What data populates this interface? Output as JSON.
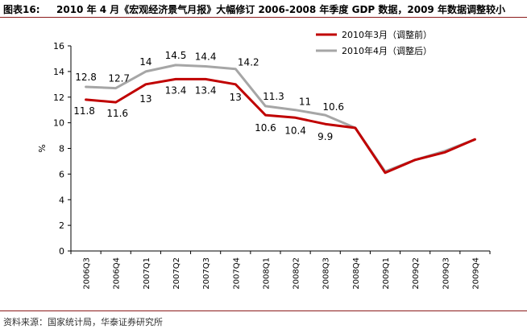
{
  "header": {
    "label": "图表16:",
    "title": "2010 年 4 月《宏观经济景气月报》大幅修订 2006-2008 年季度 GDP 数据，2009 年数据调整较小"
  },
  "footer": {
    "source": "资料来源：国家统计局，华泰证券研究所"
  },
  "chart_data": {
    "type": "line",
    "title": "",
    "xlabel": "",
    "ylabel": "%",
    "ylim": [
      0,
      16
    ],
    "yticks": [
      0,
      2,
      4,
      6,
      8,
      10,
      12,
      14,
      16
    ],
    "grid": false,
    "legend_position": "top-right",
    "categories": [
      "2006Q3",
      "2006Q4",
      "2007Q1",
      "2007Q2",
      "2007Q3",
      "2007Q4",
      "2008Q1",
      "2008Q2",
      "2008Q3",
      "2008Q4",
      "2009Q1",
      "2009Q2",
      "2009Q3",
      "2009Q4"
    ],
    "series": [
      {
        "name": "2010年3月（调整前）",
        "color": "#c00000",
        "values": [
          11.8,
          11.6,
          13,
          13.4,
          13.4,
          13,
          10.6,
          10.4,
          9.9,
          9.6,
          6.1,
          7.1,
          7.7,
          8.7
        ],
        "labels": [
          "11.8",
          "11.6",
          "13",
          "13.4",
          "13.4",
          "13",
          "10.6",
          "10.4",
          "9.9",
          null,
          null,
          null,
          null,
          null
        ]
      },
      {
        "name": "2010年4月（调整后）",
        "color": "#a6a6a6",
        "values": [
          12.8,
          12.7,
          14,
          14.5,
          14.4,
          14.2,
          11.3,
          11,
          10.6,
          9.6,
          6.2,
          7.1,
          7.8,
          8.7
        ],
        "labels": [
          "12.8",
          "12.7",
          "14",
          "14.5",
          "14.4",
          "14.2",
          "11.3",
          "11",
          "10.6",
          null,
          null,
          null,
          null,
          null
        ]
      }
    ]
  }
}
